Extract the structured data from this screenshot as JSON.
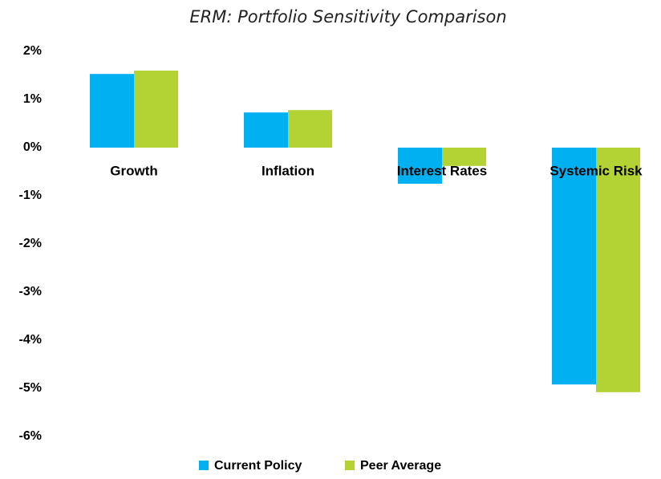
{
  "chart_data": {
    "type": "bar",
    "title": "ERM: Portfolio Sensitivity Comparison",
    "categories": [
      "Growth",
      "Inflation",
      "Interest Rates",
      "Systemic Risk"
    ],
    "series": [
      {
        "name": "Current Policy",
        "color": "#00b0f0",
        "values": [
          1.53,
          0.73,
          -0.75,
          -4.92
        ]
      },
      {
        "name": "Peer Average",
        "color": "#b3d234",
        "values": [
          1.6,
          0.78,
          -0.38,
          -5.08
        ]
      }
    ],
    "ylim": [
      -6,
      2
    ],
    "yticks": [
      {
        "value": -6,
        "label": "-6%"
      },
      {
        "value": -5,
        "label": "-5%"
      },
      {
        "value": -4,
        "label": "-4%"
      },
      {
        "value": -3,
        "label": "-3%"
      },
      {
        "value": -2,
        "label": "-2%"
      },
      {
        "value": -1,
        "label": "-1%"
      },
      {
        "value": 0,
        "label": "0%"
      },
      {
        "value": 1,
        "label": "1%"
      },
      {
        "value": 2,
        "label": "2%"
      }
    ],
    "grid": false,
    "legend": "bottom"
  }
}
